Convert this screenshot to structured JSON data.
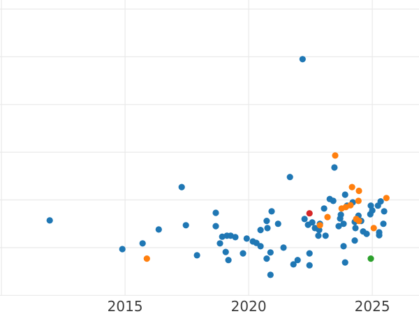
{
  "chart_data": {
    "type": "scatter",
    "title": "",
    "xlabel": "",
    "ylabel": "",
    "grid": true,
    "legend_position": "none",
    "background_color": "#ffffff",
    "grid_color": "#e9e9e9",
    "tick_label_color": "#3d3d3d",
    "tick_font_size_px": 20,
    "marker_radius_px": 4.6,
    "xlim": [
      2009.94,
      2026.89
    ],
    "ylim": [
      0,
      6.19
    ],
    "x_tick_labels": [
      "2015",
      "2020",
      "2025"
    ],
    "x_tick_values": [
      2015,
      2020,
      2025
    ],
    "x_gridline_values": [
      2010,
      2015,
      2020,
      2025
    ],
    "y_gridline_values": [
      0,
      1,
      2,
      3,
      4,
      5,
      6
    ],
    "series": [
      {
        "name": "series-blue",
        "color": "#1f77b4",
        "points": [
          [
            2011.95,
            1.57
          ],
          [
            2014.89,
            0.97
          ],
          [
            2015.71,
            1.09
          ],
          [
            2016.36,
            1.38
          ],
          [
            2017.29,
            2.27
          ],
          [
            2017.46,
            1.47
          ],
          [
            2017.91,
            0.84
          ],
          [
            2018.67,
            1.73
          ],
          [
            2018.67,
            1.45
          ],
          [
            2018.84,
            1.09
          ],
          [
            2018.93,
            1.23
          ],
          [
            2019.07,
            0.91
          ],
          [
            2019.12,
            1.25
          ],
          [
            2019.18,
            0.74
          ],
          [
            2019.27,
            1.25
          ],
          [
            2019.46,
            1.22
          ],
          [
            2019.77,
            0.88
          ],
          [
            2019.92,
            1.19
          ],
          [
            2020.17,
            1.13
          ],
          [
            2020.31,
            1.1
          ],
          [
            2020.48,
            1.37
          ],
          [
            2020.48,
            1.03
          ],
          [
            2020.73,
            1.56
          ],
          [
            2020.73,
            0.77
          ],
          [
            2020.76,
            1.41
          ],
          [
            2020.88,
            0.9
          ],
          [
            2020.88,
            0.43
          ],
          [
            2020.93,
            1.76
          ],
          [
            2021.19,
            1.5
          ],
          [
            2021.41,
            1.0
          ],
          [
            2021.67,
            2.48
          ],
          [
            2021.81,
            0.65
          ],
          [
            2021.98,
            0.74
          ],
          [
            2022.18,
            4.95
          ],
          [
            2022.26,
            1.6
          ],
          [
            2022.4,
            1.48
          ],
          [
            2022.46,
            0.88
          ],
          [
            2022.46,
            0.63
          ],
          [
            2022.57,
            1.53
          ],
          [
            2022.68,
            1.41
          ],
          [
            2022.82,
            1.25
          ],
          [
            2022.85,
            1.37
          ],
          [
            2022.88,
            1.5
          ],
          [
            2023.05,
            1.82
          ],
          [
            2023.11,
            1.25
          ],
          [
            2023.28,
            2.02
          ],
          [
            2023.42,
            1.98
          ],
          [
            2023.47,
            2.68
          ],
          [
            2023.64,
            1.45
          ],
          [
            2023.7,
            1.61
          ],
          [
            2023.73,
            1.69
          ],
          [
            2023.84,
            1.5
          ],
          [
            2023.84,
            1.03
          ],
          [
            2023.9,
            2.11
          ],
          [
            2023.9,
            0.69
          ],
          [
            2023.98,
            1.88
          ],
          [
            2024.21,
            1.95
          ],
          [
            2024.29,
            1.54
          ],
          [
            2024.29,
            1.15
          ],
          [
            2024.32,
            1.41
          ],
          [
            2024.44,
            1.67
          ],
          [
            2024.55,
            1.56
          ],
          [
            2024.63,
            1.34
          ],
          [
            2024.77,
            1.29
          ],
          [
            2024.92,
            1.7
          ],
          [
            2024.94,
            1.88
          ],
          [
            2025.0,
            1.78
          ],
          [
            2025.23,
            1.88
          ],
          [
            2025.28,
            1.32
          ],
          [
            2025.28,
            1.26
          ],
          [
            2025.34,
            1.97
          ],
          [
            2025.45,
            1.5
          ],
          [
            2025.48,
            1.76
          ]
        ]
      },
      {
        "name": "series-orange",
        "color": "#ff7f0e",
        "points": [
          [
            2015.88,
            0.77
          ],
          [
            2022.88,
            1.47
          ],
          [
            2023.19,
            1.64
          ],
          [
            2023.5,
            2.93
          ],
          [
            2023.76,
            1.82
          ],
          [
            2023.93,
            1.85
          ],
          [
            2024.12,
            1.89
          ],
          [
            2024.18,
            2.27
          ],
          [
            2024.35,
            1.6
          ],
          [
            2024.44,
            1.98
          ],
          [
            2024.46,
            1.56
          ],
          [
            2024.46,
            2.19
          ],
          [
            2025.06,
            1.41
          ],
          [
            2025.57,
            2.04
          ]
        ]
      },
      {
        "name": "series-red",
        "color": "#d62728",
        "points": [
          [
            2022.46,
            1.72
          ]
        ]
      },
      {
        "name": "series-green",
        "color": "#2ca02c",
        "points": [
          [
            2024.94,
            0.77
          ]
        ]
      }
    ]
  }
}
